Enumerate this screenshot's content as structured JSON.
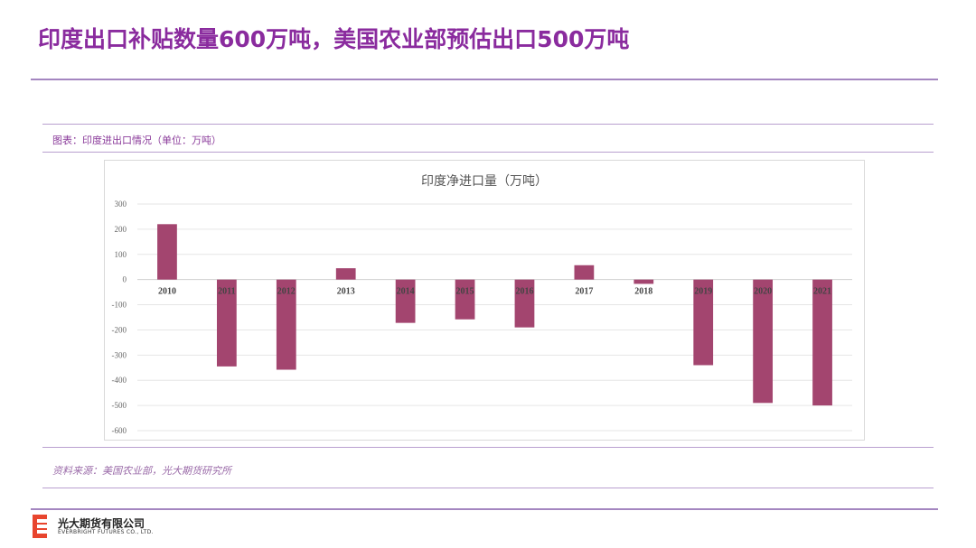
{
  "header": {
    "title": "印度出口补贴数量600万吨，美国农业部预估出口500万吨"
  },
  "caption": "图表：印度进出口情况（单位：万吨）",
  "source": "资料来源：美国农业部，光大期货研究所",
  "company": {
    "name": "光大期货有限公司",
    "english": "EVERBRIGHT FUTURES CO., LTD."
  },
  "colors": {
    "accent": "#8a2b9e",
    "bar": "#a3456f"
  },
  "chart_data": {
    "type": "bar",
    "title": "印度净进口量（万吨）",
    "categories": [
      "2010",
      "2011",
      "2012",
      "2013",
      "2014",
      "2015",
      "2016",
      "2017",
      "2018",
      "2019",
      "2020",
      "2021"
    ],
    "values": [
      220,
      -345,
      -358,
      45,
      -172,
      -158,
      -190,
      57,
      -17,
      -340,
      -490,
      -500
    ],
    "ylim": [
      -600,
      300
    ],
    "yticks": [
      300,
      200,
      100,
      0,
      -100,
      -200,
      -300,
      -400,
      -500,
      -600
    ],
    "grid": true,
    "legend": "none"
  }
}
